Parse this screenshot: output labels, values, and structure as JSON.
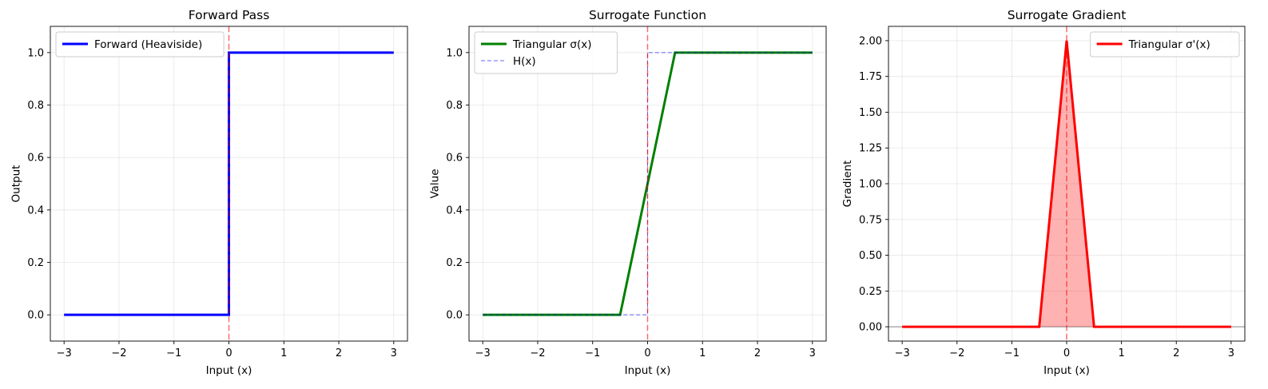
{
  "chart_data": [
    {
      "type": "line",
      "title": "Forward Pass",
      "xlabel": "Input (x)",
      "ylabel": "Output",
      "xlim": [
        -3.25,
        3.25
      ],
      "ylim": [
        -0.1,
        1.1
      ],
      "xticks": [
        -3,
        -2,
        -1,
        0,
        1,
        2,
        3
      ],
      "xtick_labels": [
        "−3",
        "−2",
        "−1",
        "0",
        "1",
        "2",
        "3"
      ],
      "yticks": [
        0.0,
        0.2,
        0.4,
        0.6,
        0.8,
        1.0
      ],
      "ytick_labels": [
        "0.0",
        "0.2",
        "0.4",
        "0.6",
        "0.8",
        "1.0"
      ],
      "grid": true,
      "legend": "top-left",
      "vline": {
        "x": 0,
        "color": "#ff0000",
        "style": "dashed"
      },
      "series": [
        {
          "name": "Forward (Heaviside)",
          "color": "#0000ff",
          "style": "solid",
          "width": 3,
          "x": [
            -3,
            0,
            0,
            3
          ],
          "y": [
            0,
            0,
            1,
            1
          ]
        }
      ]
    },
    {
      "type": "line",
      "title": "Surrogate Function",
      "xlabel": "Input (x)",
      "ylabel": "Value",
      "xlim": [
        -3.25,
        3.25
      ],
      "ylim": [
        -0.1,
        1.1
      ],
      "xticks": [
        -3,
        -2,
        -1,
        0,
        1,
        2,
        3
      ],
      "xtick_labels": [
        "−3",
        "−2",
        "−1",
        "0",
        "1",
        "2",
        "3"
      ],
      "yticks": [
        0.0,
        0.2,
        0.4,
        0.6,
        0.8,
        1.0
      ],
      "ytick_labels": [
        "0.0",
        "0.2",
        "0.4",
        "0.6",
        "0.8",
        "1.0"
      ],
      "grid": true,
      "legend": "top-left",
      "vline": {
        "x": 0,
        "color": "#ff0000",
        "style": "dashed"
      },
      "series": [
        {
          "name": "Triangular σ(x)",
          "color": "#008000",
          "style": "solid",
          "width": 3,
          "x": [
            -3,
            -0.5,
            0.5,
            3
          ],
          "y": [
            0,
            0,
            1,
            1
          ]
        },
        {
          "name": "H(x)",
          "color": "#0000ff",
          "style": "dashed",
          "width": 1,
          "x": [
            -3,
            0,
            0,
            3
          ],
          "y": [
            0,
            0,
            1,
            1
          ]
        }
      ]
    },
    {
      "type": "area",
      "title": "Surrogate Gradient",
      "xlabel": "Input (x)",
      "ylabel": "Gradient",
      "xlim": [
        -3.25,
        3.25
      ],
      "ylim": [
        -0.1,
        2.1
      ],
      "xticks": [
        -3,
        -2,
        -1,
        0,
        1,
        2,
        3
      ],
      "xtick_labels": [
        "−3",
        "−2",
        "−1",
        "0",
        "1",
        "2",
        "3"
      ],
      "yticks": [
        0.0,
        0.25,
        0.5,
        0.75,
        1.0,
        1.25,
        1.5,
        1.75,
        2.0
      ],
      "ytick_labels": [
        "0.00",
        "0.25",
        "0.50",
        "0.75",
        "1.00",
        "1.25",
        "1.50",
        "1.75",
        "2.00"
      ],
      "grid": true,
      "legend": "top-right",
      "vline": {
        "x": 0,
        "color": "#ff0000",
        "style": "dashed"
      },
      "hline": {
        "y": 0,
        "color": "#000000",
        "style": "solid"
      },
      "series": [
        {
          "name": "Triangular σ'(x)",
          "color": "#ff0000",
          "style": "solid",
          "width": 3,
          "fill": "#ff0000",
          "x": [
            -3,
            -0.5,
            0,
            0.5,
            3
          ],
          "y": [
            0,
            0,
            2,
            0,
            0
          ]
        }
      ]
    }
  ]
}
